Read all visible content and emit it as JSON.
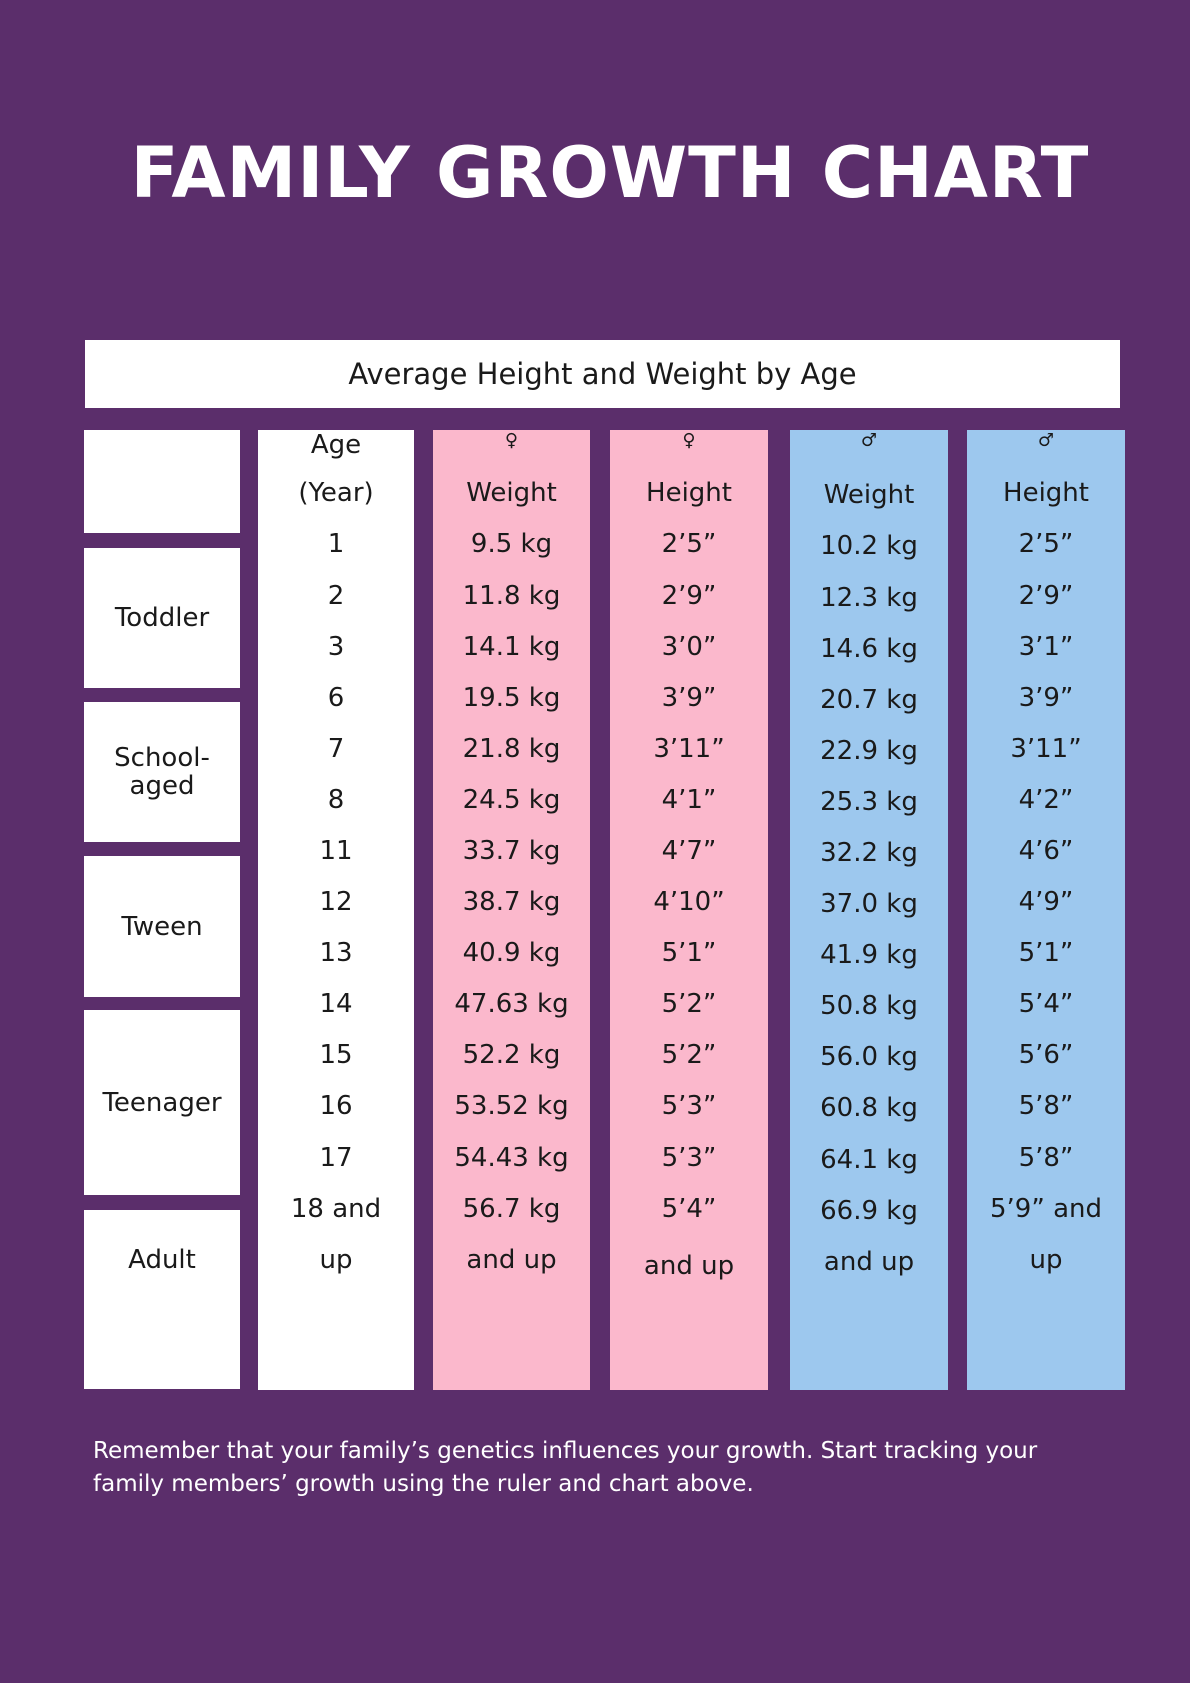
{
  "title": "FAMILY GROWTH CHART",
  "subtitle": "Average Height and Weight by Age",
  "groups": {
    "toddler": "Toddler",
    "school_aged": "School-\naged",
    "tween": "Tween",
    "teenager": "Teenager",
    "adult": "Adult"
  },
  "columns": {
    "age": {
      "header": [
        "Age",
        "(Year)"
      ],
      "values": [
        "1",
        "2",
        "3",
        "6",
        "7",
        "8",
        "11",
        "12",
        "13",
        "14",
        "15",
        "16",
        "17",
        "18 and",
        "up"
      ]
    },
    "female_weight": {
      "symbol": "♀",
      "header": "Weight",
      "values": [
        "9.5 kg",
        "11.8 kg",
        "14.1 kg",
        "19.5 kg",
        "21.8 kg",
        "24.5 kg",
        "33.7 kg",
        "38.7 kg",
        "40.9 kg",
        "47.63 kg",
        "52.2 kg",
        "53.52 kg",
        "54.43 kg",
        "56.7 kg",
        "and up"
      ]
    },
    "female_height": {
      "symbol": "♀",
      "header": "Height",
      "values": [
        "2’5”",
        "2’9”",
        "3’0”",
        "3’9”",
        "3’11”",
        "4’1”",
        "4’7”",
        "4’10”",
        "5’1”",
        "5’2”",
        "5’2”",
        "5’3”",
        "5’3”",
        "5’4”",
        "and up"
      ]
    },
    "male_weight": {
      "symbol": "♂",
      "header": "Weight",
      "values": [
        "10.2 kg",
        "12.3 kg",
        "14.6 kg",
        "20.7 kg",
        "22.9 kg",
        "25.3 kg",
        "32.2 kg",
        "37.0 kg",
        "41.9 kg",
        "50.8 kg",
        "56.0 kg",
        "60.8 kg",
        "64.1 kg",
        "66.9 kg",
        "and up"
      ]
    },
    "male_height": {
      "symbol": "♂",
      "header": "Height",
      "values": [
        "2’5”",
        "2’9”",
        "3’1”",
        "3’9”",
        "3’11”",
        "4’2”",
        "4’6”",
        "4’9”",
        "5’1”",
        "5’4”",
        "5’6”",
        "5’8”",
        "5’8”",
        "5’9” and",
        "up"
      ]
    }
  },
  "footnote": "Remember that your family’s genetics influences your growth. Start tracking your family members’ growth using the ruler and chart above.",
  "colors": {
    "background": "#5b2e6b",
    "female": "#fbb8cc",
    "male": "#9dc8ee",
    "white": "#ffffff"
  }
}
